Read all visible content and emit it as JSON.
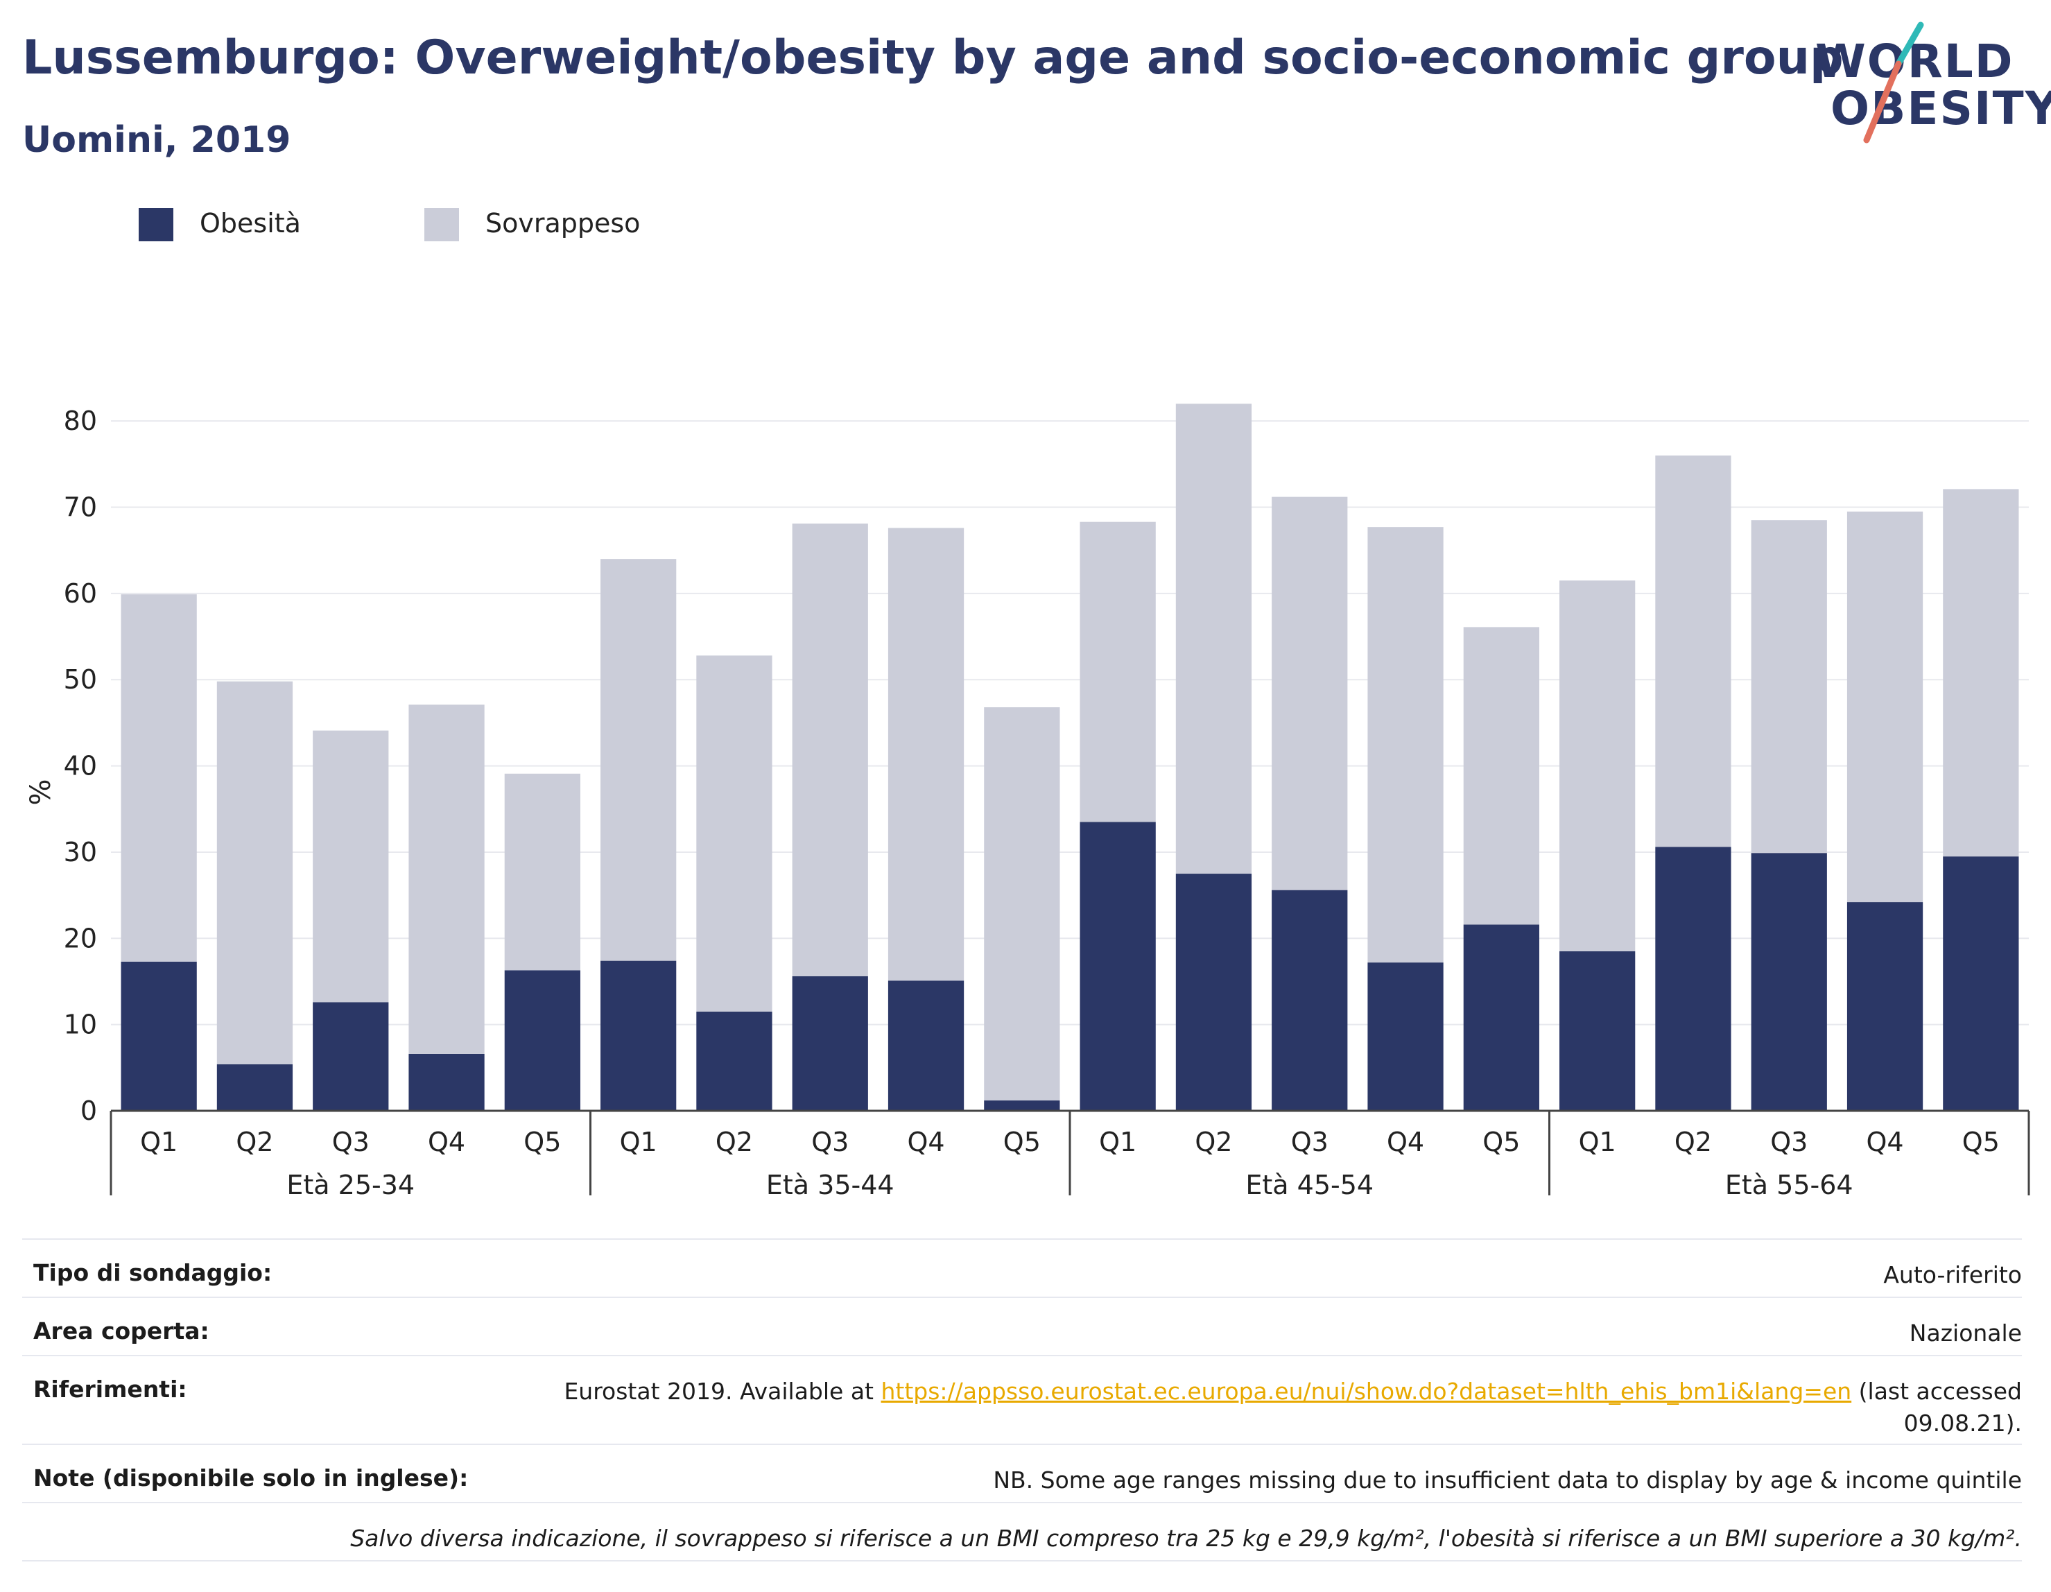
{
  "header": {
    "title": "Lussemburgo: Overweight/obesity by age and socio-economic group",
    "subtitle": "Uomini, 2019"
  },
  "logo": {
    "line1": "WORLD",
    "line2": "OBESITY"
  },
  "colors": {
    "obesity": "#2b3766",
    "overweight": "#cbcdd9",
    "accent_teal": "#2fb9b7",
    "accent_coral": "#e2705d",
    "link": "#e8a900"
  },
  "chart_data": {
    "type": "bar",
    "stacked": true,
    "ylabel": "%",
    "ylim": [
      0,
      85
    ],
    "yticks": [
      0,
      10,
      20,
      30,
      40,
      50,
      60,
      70,
      80
    ],
    "grid": true,
    "legend_position": "top-left",
    "groups": [
      {
        "label": "Età 25-34",
        "categories": [
          "Q1",
          "Q2",
          "Q3",
          "Q4",
          "Q5"
        ]
      },
      {
        "label": "Età 35-44",
        "categories": [
          "Q1",
          "Q2",
          "Q3",
          "Q4",
          "Q5"
        ]
      },
      {
        "label": "Età 45-54",
        "categories": [
          "Q1",
          "Q2",
          "Q3",
          "Q4",
          "Q5"
        ]
      },
      {
        "label": "Età 55-64",
        "categories": [
          "Q1",
          "Q2",
          "Q3",
          "Q4",
          "Q5"
        ]
      }
    ],
    "series": [
      {
        "name": "Obesità",
        "color": "#2b3766",
        "values": [
          17.3,
          5.4,
          12.6,
          6.6,
          16.3,
          17.4,
          11.5,
          15.6,
          15.1,
          1.2,
          33.5,
          27.5,
          25.6,
          17.2,
          21.6,
          18.5,
          30.6,
          29.9,
          24.2,
          29.5
        ]
      },
      {
        "name": "Sovrappeso",
        "color": "#cbcdd9",
        "values": [
          42.6,
          44.4,
          31.5,
          40.5,
          22.8,
          46.6,
          41.3,
          52.5,
          52.5,
          45.6,
          34.8,
          54.5,
          45.6,
          50.5,
          34.5,
          43.0,
          45.4,
          38.6,
          45.3,
          42.6
        ]
      }
    ]
  },
  "info": {
    "rows": [
      {
        "key": "Tipo di sondaggio:",
        "value": "Auto-riferito"
      },
      {
        "key": "Area coperta:",
        "value": "Nazionale"
      },
      {
        "key": "Riferimenti:",
        "value_prefix": "Eurostat 2019. Available at ",
        "link": "https://appsso.eurostat.ec.europa.eu/nui/show.do?dataset=hlth_ehis_bm1i&lang=en",
        "value_suffix": " (last accessed",
        "value_line2": "09.08.21)."
      },
      {
        "key": "Note (disponibile solo in inglese):",
        "value": "NB. Some age ranges missing due to insufficient data to display by age & income quintile"
      }
    ],
    "footnote": "Salvo diversa indicazione, il sovrappeso si riferisce a un BMI compreso tra 25 kg e 29,9 kg/m², l'obesità si riferisce a un BMI superiore a 30 kg/m²."
  }
}
